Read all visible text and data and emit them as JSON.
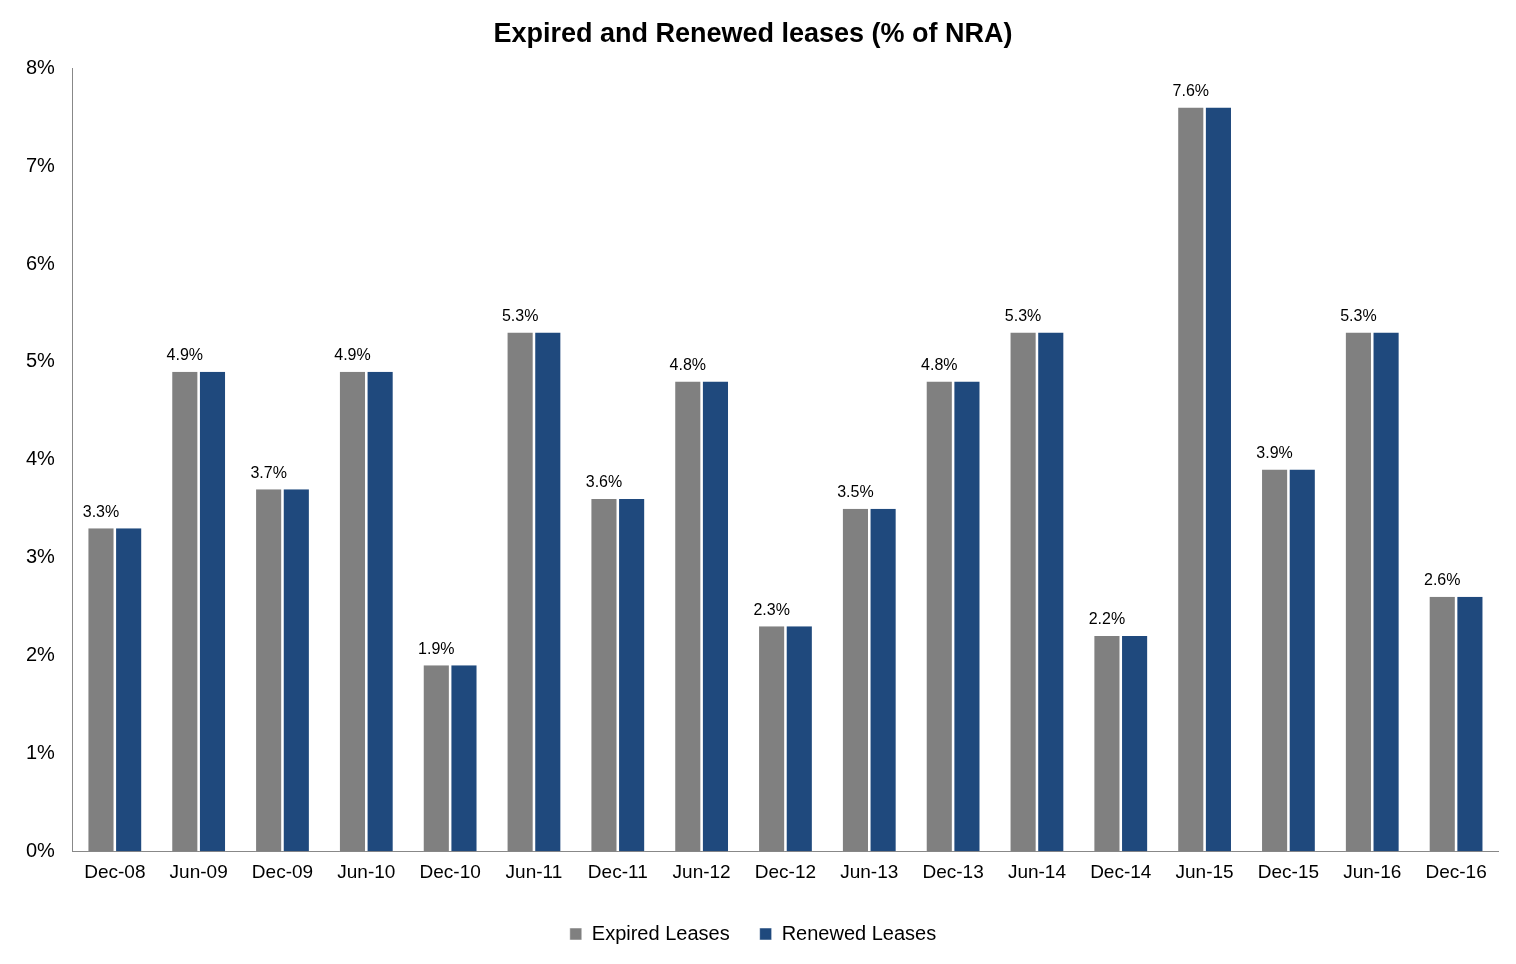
{
  "chart_data": {
    "type": "bar",
    "title": "Expired and Renewed leases (% of NRA)",
    "categories": [
      "Dec-08",
      "Jun-09",
      "Dec-09",
      "Jun-10",
      "Dec-10",
      "Jun-11",
      "Dec-11",
      "Jun-12",
      "Dec-12",
      "Jun-13",
      "Dec-13",
      "Jun-14",
      "Dec-14",
      "Jun-15",
      "Dec-15",
      "Jun-16",
      "Dec-16"
    ],
    "series": [
      {
        "name": "Expired Leases",
        "color": "#808080",
        "values": [
          3.3,
          4.9,
          3.7,
          4.9,
          1.9,
          5.3,
          3.6,
          4.8,
          2.3,
          3.5,
          4.8,
          5.3,
          2.2,
          7.6,
          3.9,
          5.3,
          2.6
        ],
        "value_labels": [
          "3.3%",
          "4.9%",
          "3.7%",
          "4.9%",
          "1.9%",
          "5.3%",
          "3.6%",
          "4.8%",
          "2.3%",
          "3.5%",
          "4.8%",
          "5.3%",
          "2.2%",
          "7.6%",
          "3.9%",
          "5.3%",
          "2.6%"
        ]
      },
      {
        "name": "Renewed Leases",
        "color": "#1f497d",
        "values": [
          3.3,
          4.9,
          3.7,
          4.9,
          1.9,
          5.3,
          3.6,
          4.8,
          2.3,
          3.5,
          4.8,
          5.3,
          2.2,
          7.6,
          3.9,
          5.3,
          2.6
        ]
      }
    ],
    "ylim": [
      0,
      8
    ],
    "yticks": [
      {
        "value": 0,
        "label": "0%"
      },
      {
        "value": 1,
        "label": "1%"
      },
      {
        "value": 2,
        "label": "2%"
      },
      {
        "value": 3,
        "label": "3%"
      },
      {
        "value": 4,
        "label": "4%"
      },
      {
        "value": 5,
        "label": "5%"
      },
      {
        "value": 6,
        "label": "6%"
      },
      {
        "value": 7,
        "label": "7%"
      },
      {
        "value": 8,
        "label": "8%"
      }
    ],
    "grid": false,
    "legend": "bottom"
  }
}
